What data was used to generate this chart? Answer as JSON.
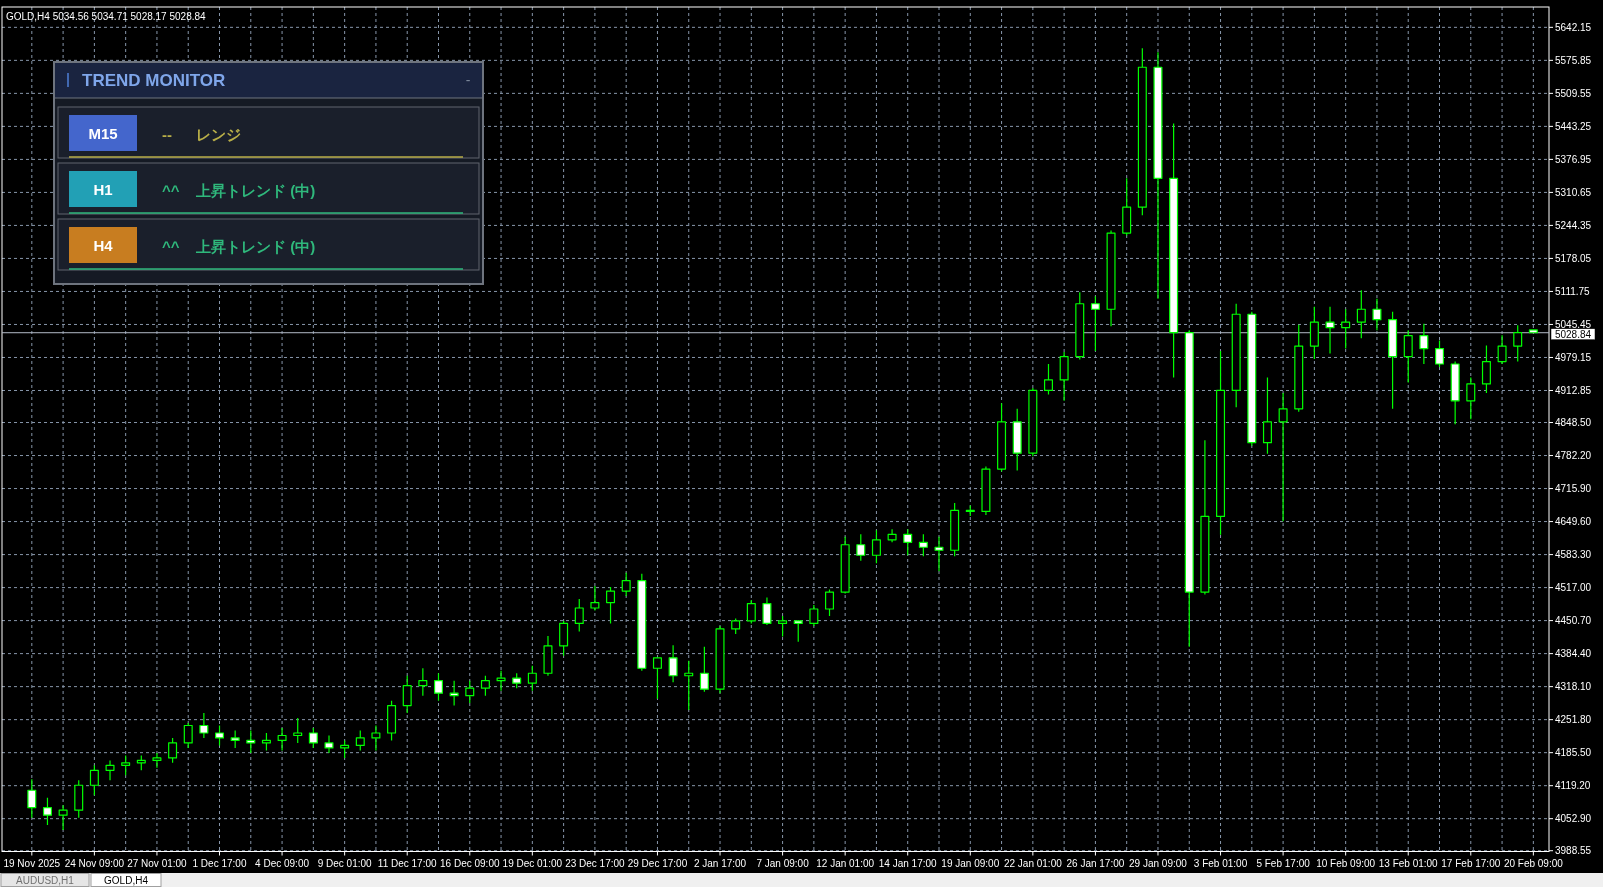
{
  "chart_data": [
    {
      "type": "candlestick",
      "title": "GOLD,H4 5034.56 5034.71 5028.17 5028.84",
      "categories": [
        "19 Nov 2025",
        null,
        null,
        null,
        "24 Nov 09:00",
        null,
        null,
        null,
        "27 Nov 01:00",
        null,
        null,
        null,
        "1 Dec 17:00",
        null,
        null,
        null,
        "4 Dec 09:00",
        null,
        null,
        null,
        "9 Dec 01:00",
        null,
        null,
        null,
        "11 Dec 17:00",
        null,
        null,
        null,
        "16 Dec 09:00",
        null,
        null,
        null,
        "19 Dec 01:00",
        null,
        null,
        null,
        "23 Dec 17:00",
        null,
        null,
        null,
        "29 Dec 17:00",
        null,
        null,
        null,
        "2 Jan 17:00",
        null,
        null,
        null,
        "7 Jan 09:00",
        null,
        null,
        null,
        "12 Jan 01:00",
        null,
        null,
        null,
        "14 Jan 17:00",
        null,
        null,
        null,
        "19 Jan 09:00",
        null,
        null,
        null,
        "22 Jan 01:00",
        null,
        null,
        null,
        "26 Jan 17:00",
        null,
        null,
        null,
        "29 Jan 09:00",
        null,
        null,
        null,
        "3 Feb 01:00",
        null,
        null,
        null,
        "5 Feb 17:00",
        null,
        null,
        null,
        "10 Feb 09:00",
        null,
        null,
        null,
        "13 Feb 01:00",
        null,
        null,
        null,
        "17 Feb 17:00",
        null,
        null,
        null,
        "20 Feb 09:00"
      ],
      "ohlc": [
        [
          4110,
          4132,
          4055,
          4075
        ],
        [
          4075,
          4095,
          4040,
          4060
        ],
        [
          4060,
          4080,
          4030,
          4070
        ],
        [
          4070,
          4130,
          4055,
          4120
        ],
        [
          4120,
          4160,
          4100,
          4150
        ],
        [
          4150,
          4170,
          4130,
          4160
        ],
        [
          4160,
          4180,
          4140,
          4165
        ],
        [
          4165,
          4180,
          4150,
          4170
        ],
        [
          4170,
          4185,
          4155,
          4175
        ],
        [
          4175,
          4215,
          4165,
          4205
        ],
        [
          4205,
          4245,
          4195,
          4240
        ],
        [
          4240,
          4265,
          4215,
          4225
        ],
        [
          4225,
          4240,
          4200,
          4215
        ],
        [
          4215,
          4230,
          4195,
          4210
        ],
        [
          4210,
          4230,
          4185,
          4205
        ],
        [
          4205,
          4225,
          4190,
          4210
        ],
        [
          4210,
          4235,
          4190,
          4220
        ],
        [
          4220,
          4255,
          4205,
          4225
        ],
        [
          4225,
          4235,
          4195,
          4205
        ],
        [
          4205,
          4220,
          4185,
          4195
        ],
        [
          4195,
          4210,
          4175,
          4200
        ],
        [
          4200,
          4230,
          4190,
          4215
        ],
        [
          4215,
          4240,
          4190,
          4225
        ],
        [
          4225,
          4290,
          4210,
          4280
        ],
        [
          4280,
          4340,
          4265,
          4320
        ],
        [
          4320,
          4355,
          4300,
          4330
        ],
        [
          4330,
          4345,
          4290,
          4305
        ],
        [
          4305,
          4330,
          4280,
          4300
        ],
        [
          4300,
          4330,
          4285,
          4315
        ],
        [
          4315,
          4340,
          4300,
          4330
        ],
        [
          4330,
          4350,
          4310,
          4335
        ],
        [
          4335,
          4345,
          4315,
          4325
        ],
        [
          4325,
          4360,
          4310,
          4345
        ],
        [
          4345,
          4420,
          4340,
          4400
        ],
        [
          4400,
          4450,
          4380,
          4445
        ],
        [
          4445,
          4494,
          4429,
          4476
        ],
        [
          4476,
          4520,
          4471,
          4487
        ],
        [
          4487,
          4518,
          4445,
          4510
        ],
        [
          4510,
          4547,
          4500,
          4531
        ],
        [
          4531,
          4545,
          4350,
          4355
        ],
        [
          4355,
          4377,
          4294,
          4376
        ],
        [
          4376,
          4401,
          4327,
          4340
        ],
        [
          4340,
          4370,
          4271,
          4345
        ],
        [
          4345,
          4398,
          4308,
          4313
        ],
        [
          4313,
          4440,
          4305,
          4434
        ],
        [
          4434,
          4455,
          4424,
          4450
        ],
        [
          4450,
          4492,
          4445,
          4485
        ],
        [
          4485,
          4497,
          4442,
          4445
        ],
        [
          4445,
          4460,
          4419,
          4450
        ],
        [
          4450,
          4452,
          4408,
          4445
        ],
        [
          4445,
          4482,
          4440,
          4474
        ],
        [
          4474,
          4513,
          4460,
          4508
        ],
        [
          4508,
          4619,
          4505,
          4603
        ],
        [
          4603,
          4624,
          4571,
          4582
        ],
        [
          4582,
          4632,
          4566,
          4613
        ],
        [
          4613,
          4634,
          4608,
          4624
        ],
        [
          4624,
          4634,
          4582,
          4608
        ],
        [
          4608,
          4624,
          4580,
          4598
        ],
        [
          4598,
          4619,
          4550,
          4592
        ],
        [
          4592,
          4687,
          4580,
          4672
        ],
        [
          4672,
          4682,
          4661,
          4670
        ],
        [
          4670,
          4760,
          4663,
          4755
        ],
        [
          4755,
          4887,
          4750,
          4850
        ],
        [
          4850,
          4876,
          4752,
          4787
        ],
        [
          4787,
          4918,
          4781,
          4913
        ],
        [
          4913,
          4966,
          4905,
          4934
        ],
        [
          4934,
          4990,
          4892,
          4981
        ],
        [
          4981,
          5110,
          4975,
          5087
        ],
        [
          5087,
          5102,
          4992,
          5076
        ],
        [
          5076,
          5234,
          5042,
          5229
        ],
        [
          5229,
          5339,
          5224,
          5281
        ],
        [
          5281,
          5600,
          5265,
          5562
        ],
        [
          5562,
          5592,
          5097,
          5339
        ],
        [
          5339,
          5449,
          4939,
          5029
        ],
        [
          5029,
          5034,
          4398,
          4508
        ],
        [
          4508,
          4813,
          4503,
          4660
        ],
        [
          4660,
          4992,
          4623,
          4913
        ],
        [
          4913,
          5087,
          4879,
          5066
        ],
        [
          5066,
          5071,
          4802,
          4808
        ],
        [
          4808,
          4939,
          4786,
          4850
        ],
        [
          4850,
          4908,
          4650,
          4876
        ],
        [
          4876,
          5045,
          4870,
          5002
        ],
        [
          5002,
          5081,
          4976,
          5050
        ],
        [
          5050,
          5081,
          4987,
          5039
        ],
        [
          5039,
          5076,
          4997,
          5050
        ],
        [
          5050,
          5114,
          5018,
          5076
        ],
        [
          5076,
          5097,
          5034,
          5055
        ],
        [
          5055,
          5071,
          4876,
          4981
        ],
        [
          4981,
          5034,
          4929,
          5023
        ],
        [
          5023,
          5047,
          4966,
          4997
        ],
        [
          4997,
          5013,
          4960,
          4966
        ],
        [
          4966,
          4971,
          4845,
          4892
        ],
        [
          4892,
          4939,
          4855,
          4926
        ],
        [
          4926,
          5003,
          4908,
          4971
        ],
        [
          4971,
          5024,
          4966,
          5002
        ],
        [
          5002,
          5044,
          4971,
          5029
        ],
        [
          5034.56,
          5034.71,
          5028.17,
          5028.84
        ]
      ],
      "color": "#00ff00",
      "ylim": [
        3987,
        5683
      ],
      "yticks": [
        3988.55,
        {
          "value": 4052.9,
          "label": "4052.90"
        },
        {
          "value": 4119.2,
          "label": "4119.20"
        },
        {
          "value": 4185.5,
          "label": "4185.50"
        },
        {
          "value": 4251.8,
          "label": "4251.80"
        },
        {
          "value": 4318.1,
          "label": "4318.10"
        },
        {
          "value": 4384.4,
          "label": "4384.40"
        },
        {
          "value": 4450.7,
          "label": "4450.70"
        },
        {
          "value": 4517,
          "label": "4517.00"
        },
        {
          "value": 4583.3,
          "label": "4583.30"
        },
        {
          "value": 4649.6,
          "label": "4649.60"
        },
        {
          "value": 4715.9,
          "label": "4715.90"
        },
        {
          "value": 4782.2,
          "label": "4782.20"
        },
        {
          "value": 4848.5,
          "label": "4848.50"
        },
        4912.85,
        4979.15,
        5045.45,
        5111.75,
        5178.05,
        5244.35,
        5310.65,
        5376.95,
        5443.25,
        5509.55,
        5575.85,
        5642.15
      ],
      "grid": true,
      "ref_lines": [
        {
          "axis": "y",
          "value": 5028.84,
          "label": "5028.84",
          "color": "#b4bcc8"
        }
      ],
      "annotations": [
        "AUDUSD,H1",
        "GOLD,H4"
      ]
    },
    {
      "type": "other",
      "title": "TREND MONITOR",
      "categories": [
        "M15",
        "H1",
        "H4"
      ],
      "colors": [
        "#4466cc",
        "#22a0b5",
        "#c87d20"
      ],
      "annotations": [
        "-",
        "--",
        "レンジ",
        "^^",
        "上昇トレンド (中)",
        "^^",
        "上昇トレンド (中)"
      ]
    }
  ]
}
